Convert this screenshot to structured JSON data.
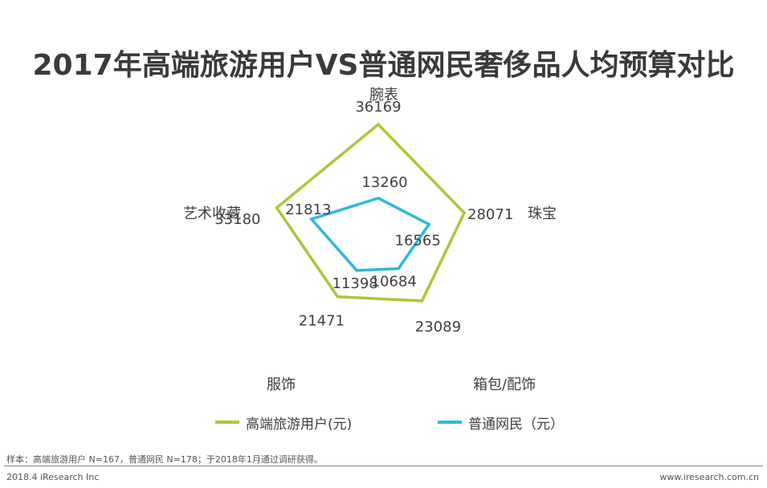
{
  "chart_data": {
    "type": "radar",
    "title": "2017年高端旅游用户VS普通网民奢侈品人均预算对比",
    "categories": [
      "腕表",
      "珠宝",
      "箱包/配饰",
      "服饰",
      "艺术收藏"
    ],
    "series": [
      {
        "name": "高端旅游用户(元)",
        "color": "#a8c83a",
        "values": [
          36169,
          28071,
          23089,
          21471,
          33180
        ]
      },
      {
        "name": "普通网民（元）",
        "color": "#2fb8d8",
        "values": [
          13260,
          16565,
          10684,
          11398,
          21813
        ]
      }
    ],
    "rmax": 36169
  },
  "legend": [
    {
      "label": "高端旅游用户(元)",
      "color": "#a8c83a"
    },
    {
      "label": "普通网民（元）",
      "color": "#2fb8d8"
    }
  ],
  "footer": {
    "note": "样本：高端旅游用户 N=167，普通网民 N=178；于2018年1月通过调研获得。",
    "copyright": "2018.4 iResearch Inc",
    "website": "www.iresearch.com.cn"
  }
}
